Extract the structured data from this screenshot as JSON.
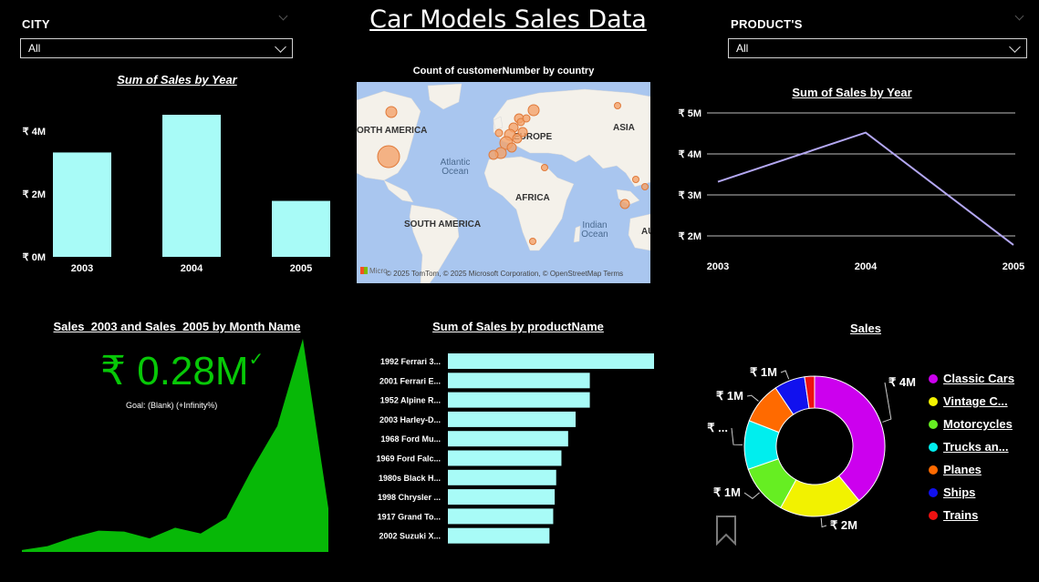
{
  "title": "Car Models Sales Data",
  "slicers": {
    "city": {
      "label": "CITY",
      "value": "All"
    },
    "products": {
      "label": "PRODUCT'S",
      "value": "All"
    }
  },
  "map": {
    "title": "Count of customerNumber by country",
    "labels": {
      "north_america": "ORTH AMERICA",
      "europe": "EUROPE",
      "asia": "ASIA",
      "africa": "AFRICA",
      "south_america": "SOUTH AMERICA",
      "atlantic": "Atlantic Ocean",
      "indian": "Indian Ocean",
      "au": "AU"
    },
    "attribution": "© 2025 TomTom, © 2025 Microsoft Corporation, © OpenStreetMap  Terms",
    "logo": "Micro"
  },
  "kpi": {
    "title": "Sales_2003 and Sales_2005 by Month Name",
    "value": "₹ 0.28M",
    "check": "✓",
    "goal": "Goal: (Blank) (+Infinity%)"
  },
  "chart_data": [
    {
      "type": "bar",
      "title": "Sum of Sales by Year",
      "categories": [
        "2003",
        "2004",
        "2005"
      ],
      "values": [
        3.32,
        4.52,
        1.78
      ],
      "ylim": [
        0,
        4.52
      ],
      "yticks": [
        {
          "v": 0,
          "label": "₹ 0M"
        },
        {
          "v": 2,
          "label": "₹ 2M"
        },
        {
          "v": 4,
          "label": "₹ 4M"
        }
      ],
      "color": "#a8fbf7"
    },
    {
      "type": "line",
      "title": "Sum of Sales by Year",
      "categories": [
        "2003",
        "2004",
        "2005"
      ],
      "values": [
        3.32,
        4.52,
        1.78
      ],
      "ylim": [
        1.8,
        5
      ],
      "yticks": [
        {
          "v": 2,
          "label": "₹ 2M"
        },
        {
          "v": 3,
          "label": "₹ 3M"
        },
        {
          "v": 4,
          "label": "₹ 4M"
        },
        {
          "v": 5,
          "label": "₹ 5M"
        }
      ],
      "grid": true,
      "color": "#b3a7f2"
    },
    {
      "type": "area",
      "values": [
        0.02,
        0.06,
        0.15,
        0.22,
        0.21,
        0.14,
        0.25,
        0.19,
        0.35,
        0.85,
        1.3,
        2.2,
        0.45
      ],
      "ylim": [
        0,
        2.2
      ],
      "color": "#07b807"
    },
    {
      "type": "bar",
      "orientation": "horizontal",
      "title": "Sum of Sales by productName",
      "categories": [
        "1992 Ferrari 3...",
        "2001 Ferrari E...",
        "1952 Alpine R...",
        "2003 Harley-D...",
        "1968 Ford Mu...",
        "1969 Ford Falc...",
        "1980s Black H...",
        "1998 Chrysler ...",
        "1917 Grand To...",
        "2002 Suzuki X..."
      ],
      "values": [
        276,
        190,
        190,
        171,
        161,
        152,
        145,
        143,
        141,
        136
      ],
      "xlim": [
        0,
        276
      ],
      "color": "#a8fbf7"
    },
    {
      "type": "pie",
      "title": "Sales",
      "categories": [
        "Classic Cars",
        "Vintage C...",
        "Motorcycles",
        "Trucks an...",
        "Planes",
        "Ships",
        "Trains"
      ],
      "legend_labels": [
        "Classic Cars",
        "Vintage C...",
        "Motorcycles",
        "Trucks an...",
        "Planes",
        "Ships",
        "Trains"
      ],
      "values": [
        3.92,
        1.9,
        1.17,
        1.13,
        0.97,
        0.71,
        0.23
      ],
      "colors": [
        "#cc00ee",
        "#f2f200",
        "#66ee22",
        "#00eeee",
        "#ff6a00",
        "#1111ee",
        "#ee1111"
      ],
      "data_labels": [
        "₹ 4M",
        "₹ 2M",
        "₹ 1M",
        "₹ ...",
        "₹ 1M",
        "₹ 1M",
        ""
      ],
      "legend_position": "right"
    }
  ]
}
